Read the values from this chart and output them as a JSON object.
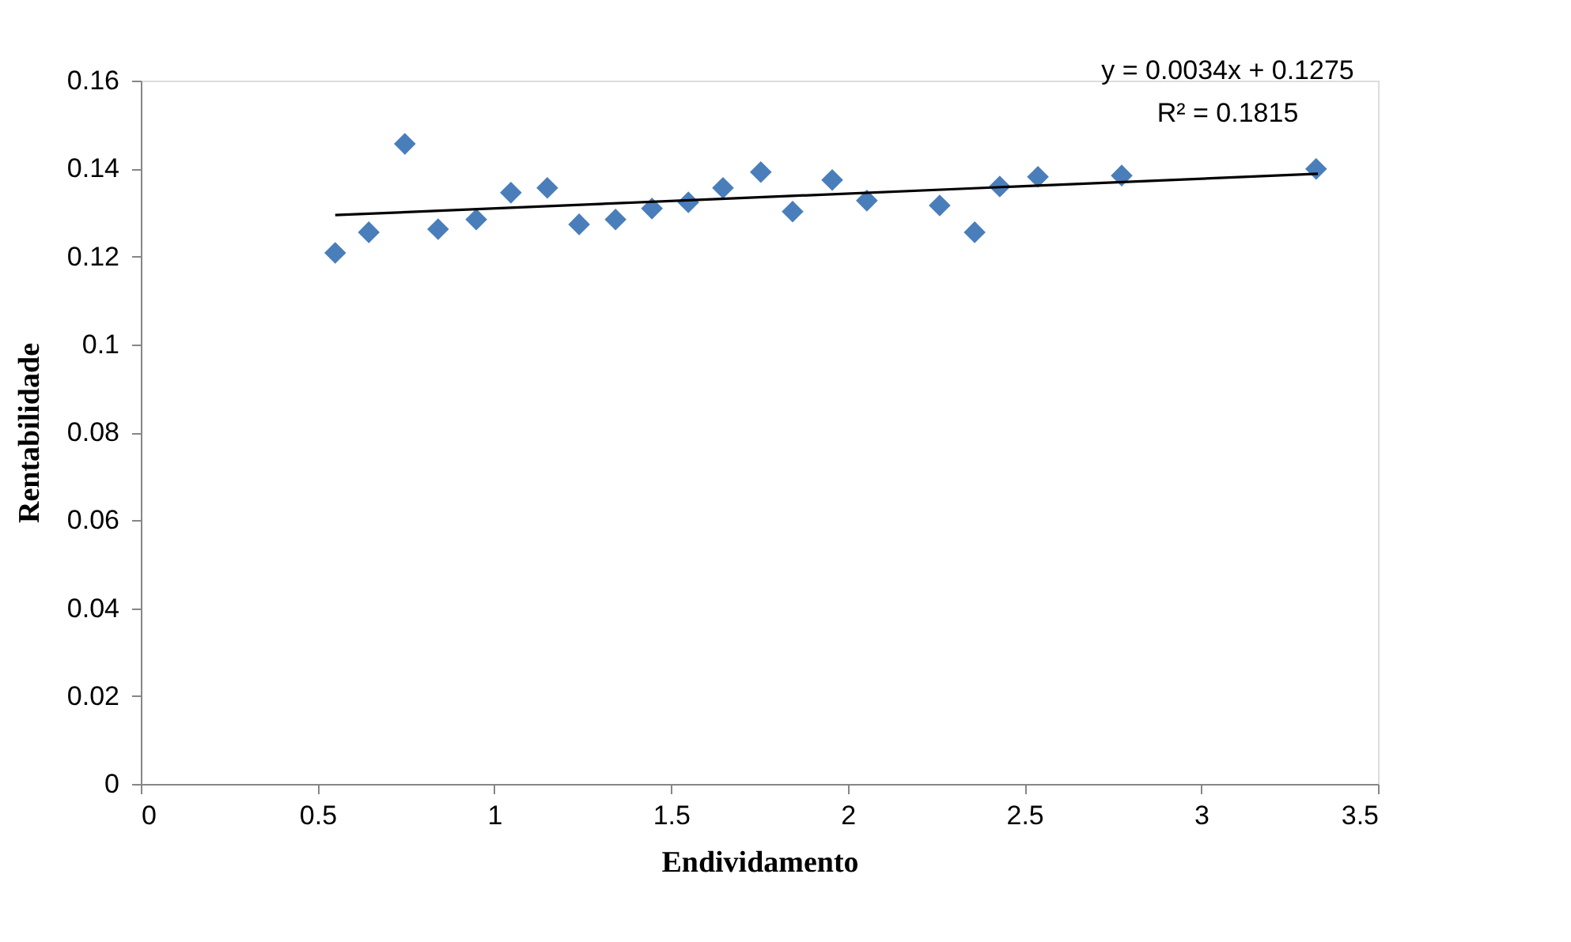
{
  "chart_data": {
    "type": "scatter",
    "xlabel": "Endividamento",
    "ylabel": "Rentabilidade",
    "annotations": [
      "y = 0.0034x + 0.1275",
      "R² = 0.1815"
    ],
    "xlim": [
      0,
      3.5
    ],
    "xticks": [
      0,
      0.5,
      1,
      1.5,
      2,
      2.5,
      3,
      3.5
    ],
    "ylim": [
      0,
      0.16
    ],
    "yticks": [
      0,
      0.02,
      0.04,
      0.06,
      0.08,
      0.1,
      0.12,
      0.14,
      0.16
    ],
    "grid": false,
    "marker": "diamond",
    "series": [
      {
        "type": "scatter",
        "color": "#4a7ebb",
        "x": [
          0.55,
          0.645,
          0.747,
          0.841,
          0.949,
          1.047,
          1.15,
          1.24,
          1.343,
          1.446,
          1.549,
          1.647,
          1.754,
          1.844,
          1.956,
          2.054,
          2.26,
          2.359,
          2.43,
          2.538,
          2.775,
          3.325
        ],
        "values": [
          0.1208,
          0.1255,
          0.1456,
          0.1262,
          0.1284,
          0.1345,
          0.1356,
          0.1273,
          0.1284,
          0.1309,
          0.1323,
          0.1356,
          0.1392,
          0.1302,
          0.1374,
          0.1327,
          0.1316,
          0.1255,
          0.1359,
          0.1381,
          0.1384,
          0.1399
        ]
      },
      {
        "type": "line",
        "color": "#000000",
        "marker": "none",
        "line_style": "solid",
        "x": [
          0.55,
          3.33
        ],
        "values": [
          0.1294,
          0.1388
        ]
      }
    ]
  }
}
